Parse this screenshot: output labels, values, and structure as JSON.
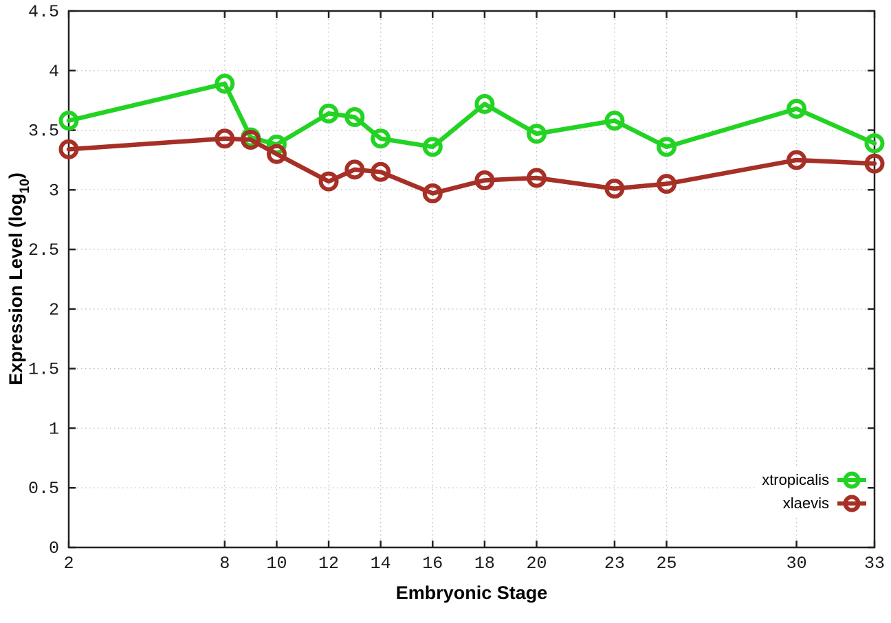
{
  "figure": {
    "xlabel": "Embryonic Stage",
    "ylabel_main": "Expression Level (log",
    "ylabel_sub": "10",
    "ylabel_close": ")"
  },
  "legend": [
    {
      "label": "xtropicalis",
      "color": "#23d323"
    },
    {
      "label": "xlaevis",
      "color": "#a62f26"
    }
  ],
  "style": {
    "background": "#ffffff",
    "axis_color": "#222222",
    "grid_color": "#bfbfbf",
    "tick_label_color": "#1a1a1a",
    "series_green": "#23d323",
    "series_dark_red": "#a62f26"
  },
  "chart_data": {
    "type": "line",
    "title": "",
    "xlabel": "Embryonic Stage",
    "ylabel": "Expression Level (log10)",
    "x": [
      2,
      8,
      9,
      10,
      12,
      13,
      14,
      16,
      18,
      20,
      23,
      25,
      30,
      33
    ],
    "series": [
      {
        "name": "xtropicalis",
        "color": "#23d323",
        "marker": "open-circle",
        "values": [
          3.58,
          3.89,
          3.44,
          3.38,
          3.64,
          3.61,
          3.43,
          3.36,
          3.72,
          3.47,
          3.58,
          3.36,
          3.68,
          3.39
        ]
      },
      {
        "name": "xlaevis",
        "color": "#a62f26",
        "marker": "open-circle",
        "values": [
          3.34,
          3.43,
          3.42,
          3.3,
          3.07,
          3.17,
          3.15,
          2.97,
          3.08,
          3.1,
          3.01,
          3.05,
          3.25,
          3.22
        ]
      }
    ],
    "xlim": [
      2,
      33
    ],
    "ylim": [
      0,
      4.5
    ],
    "xticks": [
      2,
      8,
      10,
      12,
      14,
      16,
      18,
      20,
      23,
      25,
      30,
      33
    ],
    "xtick_labels": [
      "2",
      "8",
      "10",
      "12",
      "14",
      "16",
      "18",
      "20",
      "23",
      "25",
      "30",
      "33"
    ],
    "yticks": [
      0,
      0.5,
      1,
      1.5,
      2,
      2.5,
      3,
      3.5,
      4,
      4.5
    ],
    "ytick_labels": [
      "0",
      "0.5",
      "1",
      "1.5",
      "2",
      "2.5",
      "3",
      "3.5",
      "4",
      "4.5"
    ],
    "grid": true,
    "grid_style": "dotted",
    "legend_position": "inside-bottom-right",
    "ticks_mirrored": true
  }
}
